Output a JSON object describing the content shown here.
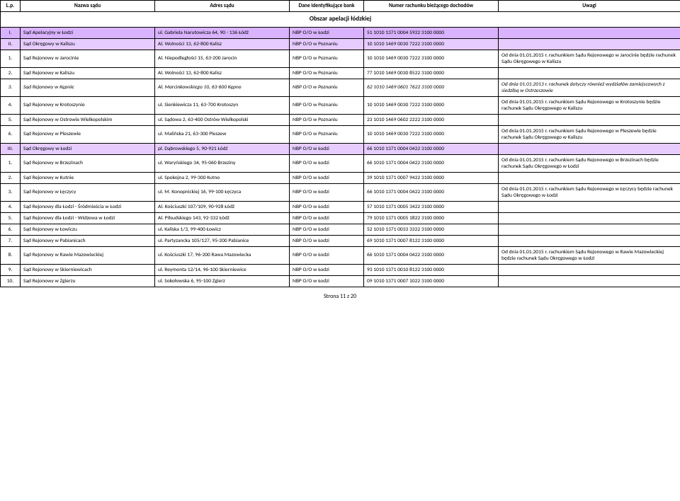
{
  "headers": {
    "lp": "L.p.",
    "name": "Nazwa sądu",
    "addr": "Adres sądu",
    "bank": "Dane identyfikujące bank",
    "acct": "Numer rachunku bieżącego dochodów",
    "notes": "Uwagi"
  },
  "section_title": "Obszar apelacji łódzkiej",
  "rows": [
    {
      "level": 1,
      "lp": "I.",
      "name": "Sąd Apelacyjny w Łodzi",
      "addr": "ul. Gabriela Narutowicza 64, 90 - 136 Łódź",
      "bank": "NBP O/O w Łodzi",
      "acct": "51 1010 1371 0004 5922 3100 0000",
      "notes": ""
    },
    {
      "level": 2,
      "lp": "II.",
      "name": "Sąd Okręgowy w Kaliszu",
      "addr": "Al. Wolności 13, 62-800 Kalisz",
      "bank": "NBP O/O w Poznaniu",
      "acct": "10 1010 1469 0030 7222 3100 0000",
      "notes": ""
    },
    {
      "level": 3,
      "lp": "1.",
      "name": "Sąd Rejonowy w Jarocinie",
      "addr": "Al. Niepodległości 15, 63-200 Jarocin",
      "bank": "NBP O/O w Poznaniu",
      "acct": "10 1010 1469 0030 7222 3100 0000",
      "notes": "Od dnia 01.01.2015 r. rachunkiem Sądu Rejonowego w Jarocinie będzie rachunek Sądu Okręgowego w Kaliszu"
    },
    {
      "level": 3,
      "lp": "2.",
      "name": "Sąd Rejonowy w Kaliszu",
      "addr": "Al. Wolności 13, 62-800 Kalisz",
      "bank": "NBP O/O w Poznaniu",
      "acct": "77 1010 1469 0030 8522 3100 0000",
      "notes": ""
    },
    {
      "level": 3,
      "italic": true,
      "lp": "3.",
      "name": "Sąd Rejonowy w Kępnie",
      "addr": "Al. Marcinkowskiego 10, 63-600 Kępno",
      "bank": "NBP O/O w Poznaniu",
      "acct": "62 1010 1469 0601 7622 3100 0000",
      "notes": "Od dnia 01.01.2013 r. rachunek dotyczy również wydziałów zamiejscowych z siedzibą w Ostrzeszowie"
    },
    {
      "level": 3,
      "lp": "4.",
      "name": "Sąd Rejonowy w Krotoszynie",
      "addr": "ul. Sienkiewicza 11, 63-700 Krotoszyn",
      "bank": "NBP O/O w Poznaniu",
      "acct": "10 1010 1469 0030 7222 3100 0000",
      "notes": "Od dnia 01.01.2015 r. rachunkiem Sądu Rejonowego w Krotoszynie będzie rachunek Sądu Okręgowego w Kaliszu"
    },
    {
      "level": 3,
      "lp": "5.",
      "name": "Sąd Rejonowy w Ostrowie Wielkopolskim",
      "addr": "ul. Sądowa 2, 63-400 Ostrów Wielkopolski",
      "bank": "NBP O/O w Poznaniu",
      "acct": "23 1010 1469 0602 2222 3100 0000",
      "notes": ""
    },
    {
      "level": 3,
      "lp": "6.",
      "name": "Sąd Rejonowy w Pleszewie",
      "addr": "ul. Malińska 21, 63-300 Pleszew",
      "bank": "NBP O/O w Poznaniu",
      "acct": "10 1010 1469 0030 7222 3100 0000",
      "notes": "Od dnia 01.01.2015 r. rachunkiem Sądu Rejonowego w Pleszewie będzie rachunek Sądu Okręgowego w Kaliszu"
    },
    {
      "level": 2,
      "lp": "III.",
      "name": "Sąd Okręgowy w Łodzi",
      "addr": "pl. Dąbrowskiego 5, 90-921 Łódź",
      "bank": "NBP O/O w Łodzi",
      "acct": "66 1010 1371 0004 0422 3100 0000",
      "notes": ""
    },
    {
      "level": 3,
      "lp": "1.",
      "name": "Sąd Rejonowy w Brzezinach",
      "addr": "ul. Waryńskiego 34, 95-060 Brzeziny",
      "bank": "NBP O/O w Łodzi",
      "acct": "66 1010 1371 0004 0422 3100 0000",
      "notes": "Od dnia 01.01.2015 r. rachunkiem Sądu Rejonowego w Brzezinach będzie rachunek Sądu Okręgowego w Łodzi"
    },
    {
      "level": 3,
      "lp": "2.",
      "name": "Sąd Rejonowy w Kutnie",
      "addr": "ul. Spokojna 2, 99-300 Kutno",
      "bank": "NBP O/O w Łodzi",
      "acct": "39 1010 1371 0007 9422 3100 0000",
      "notes": ""
    },
    {
      "level": 3,
      "lp": "3.",
      "name": "Sąd Rejonowy w Łęczycy",
      "addr": "ul. M. Konopnickiej 16, 99-100 Łęczyca",
      "bank": "NBP O/O w Łodzi",
      "acct": "66 1010 1371 0004 0422 3100 0000",
      "notes": "Od dnia 01.01.2015 r. rachunkiem Sądu Rejonowego w Łęczycy będzie rachunek Sądu Okręgowego w Łodzi"
    },
    {
      "level": 3,
      "lp": "4.",
      "name": "Sąd Rejonowy dla Łodzi - Śródmieścia w Łodzi",
      "addr": "Al. Kościuszki 107/109, 90-928 Łódź",
      "bank": "NBP O/O w Łodzi",
      "acct": "57 1010 1371 0005 3422 3100 0000",
      "notes": ""
    },
    {
      "level": 3,
      "lp": "5.",
      "name": "Sąd Rejonowy dla Łodzi - Widzewa w Łodzi",
      "addr": "Al. Piłsudskiego 143, 92-332 Łódź",
      "bank": "NBP O/O w Łodzi",
      "acct": "79 1010 1371 0005 1822 3100 0000",
      "notes": ""
    },
    {
      "level": 3,
      "lp": "6.",
      "name": "Sąd Rejonowy w Łowiczu",
      "addr": "ul. Kaliska 1/3, 99-400 Łowicz",
      "bank": "NBP O/O w Łodzi",
      "acct": "52 1010 1371 0033 3322 3100 0000",
      "notes": ""
    },
    {
      "level": 3,
      "lp": "7.",
      "name": "Sąd Rejonowy w Pabianicach",
      "addr": "ul. Partyzancka 105/127, 95-200 Pabianice",
      "bank": "NBP O/O w Łodzi",
      "acct": "69 1010 1371 0007 8122 3100 0000",
      "notes": ""
    },
    {
      "level": 3,
      "lp": "8.",
      "name": "Sąd Rejonowy w Rawie Mazowieckiej",
      "addr": "ul. Kościuszki 17, 96-200 Rawa Mazowiecka",
      "bank": "NBP O/O w Łodzi",
      "acct": "66 1010 1371 0004 0422 3100 0000",
      "notes": "Od dnia 01.01.2015 r. rachunkiem Sądu Rejonowego w Rawie Mazowieckiej będzie rachunek Sądu Okręgowego w Łodzi"
    },
    {
      "level": 3,
      "lp": "9.",
      "name": "Sąd Rejonowy w Skierniewicach",
      "addr": "ul. Reymonta 12/14, 96-100 Skierniewice",
      "bank": "NBP O/O w Łodzi",
      "acct": "93 1010 1371 0010 8122 3100 0000",
      "notes": ""
    },
    {
      "level": 3,
      "lp": "10.",
      "name": "Sąd Rejonowy w Zgierzu",
      "addr": "ul. Sokołowska 6, 95-100 Zgierz",
      "bank": "NBP O/O w Łodzi",
      "acct": "09 1010 1371 0007 1022 3100 0000",
      "notes": ""
    }
  ],
  "footer": "Strona 11 z 20"
}
